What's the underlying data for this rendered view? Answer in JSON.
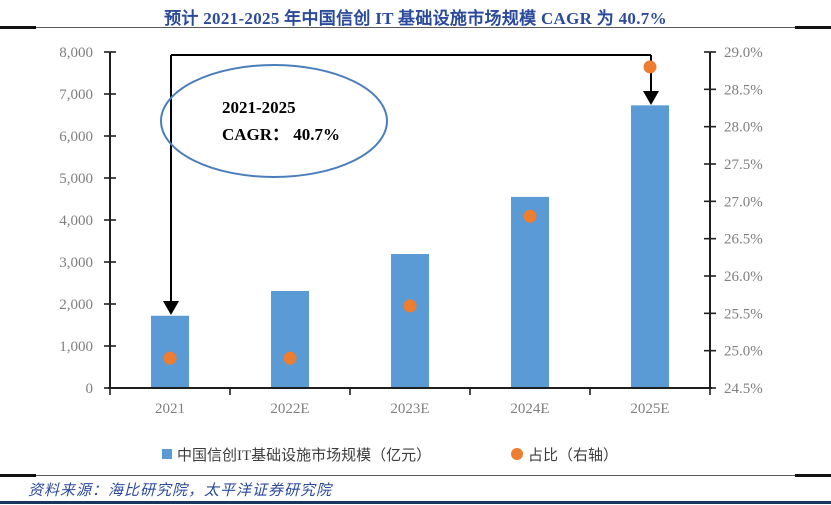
{
  "title": "预计 2021-2025 年中国信创 IT 基础设施市场规模 CAGR 为 40.7%",
  "annotation": {
    "line1": "2021-2025",
    "line2": "CAGR：  40.7%"
  },
  "legend": {
    "items": [
      {
        "label": "中国信创IT基础设施市场规模（亿元）",
        "marker": "square-icon",
        "color": "#5B9BD5"
      },
      {
        "label": "占比（右轴）",
        "marker": "circle-icon",
        "color": "#ED7D31"
      }
    ]
  },
  "footer": {
    "source": "资料来源：海比研究院，太平洋证券研究院"
  },
  "chart_data": {
    "type": "bar",
    "title": "预计 2021-2025 年中国信创 IT 基础设施市场规模 CAGR 为 40.7%",
    "categories": [
      "2021",
      "2022E",
      "2023E",
      "2024E",
      "2025E"
    ],
    "series": [
      {
        "name": "中国信创IT基础设施市场规模（亿元）",
        "type": "bar",
        "axis": "left",
        "color": "#5B9BD5",
        "values": [
          1720,
          2310,
          3190,
          4550,
          6730
        ]
      },
      {
        "name": "占比（右轴）",
        "type": "scatter",
        "axis": "right",
        "color": "#ED7D31",
        "values": [
          24.9,
          24.9,
          25.6,
          26.8,
          28.8
        ]
      }
    ],
    "left_axis": {
      "min": 0,
      "max": 8000,
      "step": 1000,
      "labels": [
        "0",
        "1,000",
        "2,000",
        "3,000",
        "4,000",
        "5,000",
        "6,000",
        "7,000",
        "8,000"
      ]
    },
    "right_axis": {
      "min": 24.5,
      "max": 29.0,
      "step": 0.5,
      "labels": [
        "24.5%",
        "25.0%",
        "25.5%",
        "26.0%",
        "26.5%",
        "27.0%",
        "27.5%",
        "28.0%",
        "28.5%",
        "29.0%"
      ]
    },
    "annotation": "2021-2025 CAGR：40.7%",
    "legend_position": "bottom",
    "grid": false
  }
}
